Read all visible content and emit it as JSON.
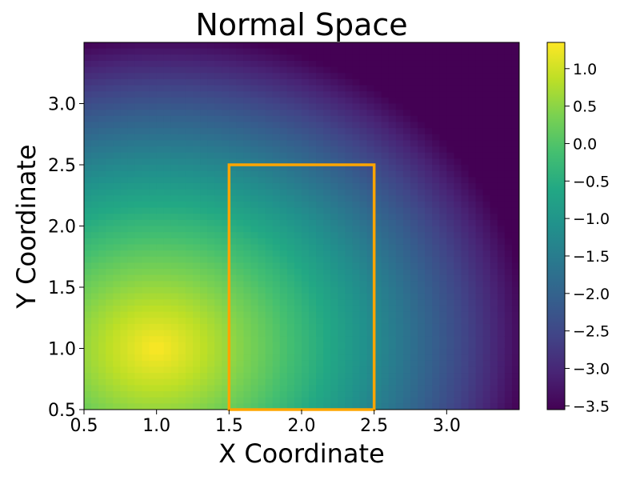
{
  "chart_data": {
    "type": "heatmap",
    "title": "Normal Space",
    "xlabel": "X Coordinate",
    "ylabel": "Y Coordinate",
    "xlim": [
      0.5,
      3.5
    ],
    "ylim": [
      0.5,
      3.5
    ],
    "x_ticks": [
      "0.5",
      "1.0",
      "1.5",
      "2.0",
      "2.5",
      "3.0"
    ],
    "y_ticks": [
      "0.5",
      "1.0",
      "1.5",
      "2.0",
      "2.5",
      "3.0"
    ],
    "colormap": "viridis",
    "colorbar": {
      "range": [
        -3.55,
        1.35
      ],
      "ticks": [
        "1.0",
        "0.5",
        "0.0",
        "−0.5",
        "−1.0",
        "−1.5",
        "−2.0",
        "−2.5",
        "−3.0",
        "−3.5"
      ]
    },
    "peak": {
      "x": 1.0,
      "y": 1.0,
      "value": 1.35
    },
    "rectangle": {
      "x0": 1.5,
      "x1": 2.5,
      "y0": 0.5,
      "y1": 2.5,
      "color": "#FFA500"
    },
    "grid": false
  }
}
